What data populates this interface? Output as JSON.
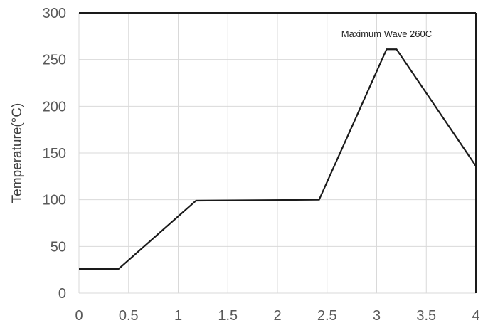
{
  "chart_data": {
    "type": "line",
    "title": "",
    "xlabel": "",
    "ylabel": "Temperature(°C)",
    "xlim": [
      0,
      4
    ],
    "ylim": [
      0,
      300
    ],
    "grid": true,
    "x_ticks": [
      "0",
      "0.5",
      "1",
      "1.5",
      "2",
      "2.5",
      "3",
      "3.5",
      "4"
    ],
    "y_ticks": [
      "0",
      "50",
      "100",
      "150",
      "200",
      "250",
      "300"
    ],
    "series": [
      {
        "x": [
          0,
          0.4,
          1.18,
          2.42,
          3.1,
          3.2,
          4.0
        ],
        "y": [
          26,
          26,
          99,
          100,
          261,
          261,
          136
        ]
      }
    ],
    "annotations": [
      {
        "text": "Maximum Wave 260C",
        "x": 3.1,
        "y": 278
      }
    ],
    "colors": {
      "line": "#1a1a1a",
      "grid": "#d9d9d9",
      "frame": "#1a1a1a"
    }
  }
}
